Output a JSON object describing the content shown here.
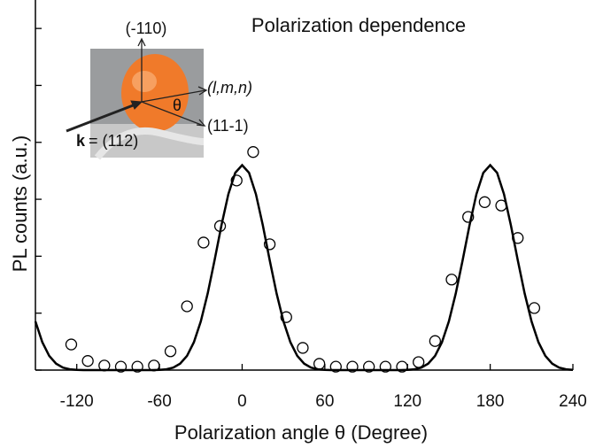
{
  "chart_data": {
    "type": "scatter",
    "title": "Polarization dependence",
    "x_label": "Polarization angle θ (Degree)",
    "y_label": "PL counts (a.u.)",
    "xlim": [
      -150,
      240
    ],
    "ylim": [
      0,
      6.5
    ],
    "xticks": [
      -120,
      -60,
      0,
      60,
      120,
      180,
      240
    ],
    "yticks": [
      0,
      1,
      2,
      3,
      4,
      5,
      6
    ],
    "annotations": [
      "(-110)",
      "(l,m,n)",
      "θ",
      "(11-1)",
      "k",
      "= (112)"
    ],
    "series": [
      {
        "color": "#000000",
        "x": [
          -124,
          -112,
          -100,
          -88,
          -76,
          -64,
          -52,
          -40,
          -28,
          -16,
          -4,
          8,
          20,
          32,
          44,
          56,
          68,
          80,
          92,
          104,
          116,
          128,
          140,
          152,
          164,
          176,
          188,
          200,
          212
        ],
        "values": [
          0.45,
          0.16,
          0.08,
          0.06,
          0.06,
          0.08,
          0.33,
          1.12,
          2.24,
          2.53,
          3.33,
          3.83,
          2.21,
          0.93,
          0.39,
          0.11,
          0.06,
          0.06,
          0.06,
          0.06,
          0.06,
          0.14,
          0.51,
          1.59,
          2.69,
          2.95,
          2.89,
          2.32,
          1.09
        ]
      },
      {
        "type": "line",
        "color": "#000000",
        "x": [
          -150,
          -145,
          -140,
          -135,
          -130,
          -125,
          -120,
          -115,
          -110,
          -105,
          -100,
          -95,
          -90,
          -85,
          -80,
          -75,
          -70,
          -65,
          -60,
          -55,
          -50,
          -45,
          -40,
          -35,
          -30,
          -25,
          -20,
          -15,
          -10,
          -5,
          0,
          5,
          10,
          15,
          20,
          25,
          30,
          35,
          40,
          45,
          50,
          55,
          60,
          65,
          70,
          75,
          80,
          85,
          90,
          95,
          100,
          105,
          110,
          115,
          120,
          125,
          130,
          135,
          140,
          145,
          150,
          155,
          160,
          165,
          170,
          175,
          180,
          185,
          190,
          195,
          200,
          205,
          210,
          215,
          220,
          225,
          230,
          235,
          240
        ],
        "values": [
          0.855,
          0.49,
          0.25,
          0.113,
          0.043,
          0.014,
          0.004,
          0,
          0,
          0,
          0,
          0,
          0,
          0,
          0,
          0,
          0,
          0,
          0.004,
          0.014,
          0.043,
          0.113,
          0.25,
          0.49,
          0.855,
          1.346,
          1.93,
          2.545,
          3.09,
          3.465,
          3.6,
          3.465,
          3.09,
          2.545,
          1.93,
          1.346,
          0.855,
          0.49,
          0.25,
          0.113,
          0.043,
          0.014,
          0.004,
          0,
          0,
          0,
          0,
          0,
          0,
          0,
          0,
          0,
          0,
          0,
          0.004,
          0.014,
          0.043,
          0.113,
          0.25,
          0.49,
          0.855,
          1.346,
          1.93,
          2.545,
          3.09,
          3.465,
          3.6,
          3.465,
          3.09,
          2.545,
          1.93,
          1.346,
          0.855,
          0.49,
          0.25,
          0.113,
          0.043,
          0.014,
          0.004
        ]
      }
    ]
  }
}
